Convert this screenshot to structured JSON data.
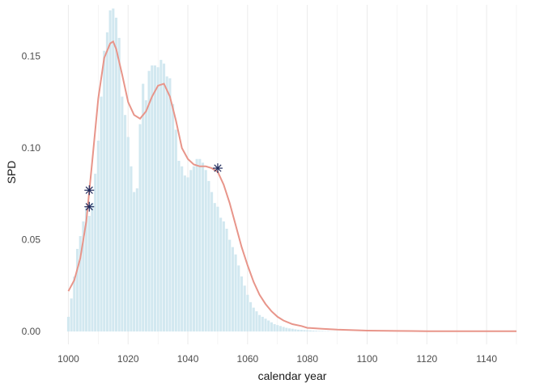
{
  "chart_data": {
    "type": "bar",
    "xlabel": "calendar year",
    "ylabel": "SPD",
    "xlim": [
      995,
      1150
    ],
    "ylim": [
      -0.007,
      0.178
    ],
    "x_ticks": [
      1000,
      1020,
      1040,
      1060,
      1080,
      1100,
      1120,
      1140
    ],
    "y_ticks": [
      0.0,
      0.05,
      0.1,
      0.15
    ],
    "y_tick_labels": [
      "0.00",
      "0.05",
      "0.10",
      "0.15"
    ],
    "grid": true,
    "colors": {
      "histogram": "#d2e8f0",
      "density_line": "#e8958a",
      "markers": "#1f2a5c",
      "grid": "#ebebeb"
    },
    "histogram": {
      "bin_width": 1,
      "x": [
        1000,
        1001,
        1002,
        1003,
        1004,
        1005,
        1006,
        1007,
        1008,
        1009,
        1010,
        1011,
        1012,
        1013,
        1014,
        1015,
        1016,
        1017,
        1018,
        1019,
        1020,
        1021,
        1022,
        1023,
        1024,
        1025,
        1026,
        1027,
        1028,
        1029,
        1030,
        1031,
        1032,
        1033,
        1034,
        1035,
        1036,
        1037,
        1038,
        1039,
        1040,
        1041,
        1042,
        1043,
        1044,
        1045,
        1046,
        1047,
        1048,
        1049,
        1050,
        1051,
        1052,
        1053,
        1054,
        1055,
        1056,
        1057,
        1058,
        1059,
        1060,
        1061,
        1062,
        1063,
        1064,
        1065,
        1066,
        1067,
        1068,
        1069,
        1070,
        1071,
        1072,
        1073,
        1074,
        1075,
        1076,
        1077,
        1078,
        1079,
        1080,
        1081,
        1082,
        1083,
        1084,
        1085,
        1086,
        1087,
        1088,
        1089,
        1090
      ],
      "values": [
        0.008,
        0.018,
        0.03,
        0.045,
        0.052,
        0.06,
        0.068,
        0.063,
        0.07,
        0.086,
        0.104,
        0.128,
        0.153,
        0.163,
        0.175,
        0.176,
        0.171,
        0.16,
        0.128,
        0.118,
        0.106,
        0.09,
        0.076,
        0.078,
        0.113,
        0.135,
        0.126,
        0.142,
        0.145,
        0.145,
        0.144,
        0.148,
        0.146,
        0.139,
        0.138,
        0.124,
        0.11,
        0.093,
        0.09,
        0.085,
        0.084,
        0.088,
        0.09,
        0.094,
        0.094,
        0.092,
        0.088,
        0.082,
        0.076,
        0.07,
        0.068,
        0.062,
        0.06,
        0.056,
        0.05,
        0.046,
        0.042,
        0.036,
        0.03,
        0.025,
        0.02,
        0.016,
        0.013,
        0.011,
        0.009,
        0.008,
        0.007,
        0.006,
        0.005,
        0.004,
        0.0035,
        0.003,
        0.0025,
        0.002,
        0.0017,
        0.0015,
        0.0012,
        0.001,
        0.0009,
        0.0008,
        0.0007,
        0.0006,
        0.0005,
        0.0004,
        0.0003,
        0.0003,
        0.0002,
        0.0002,
        0.0001,
        0.0001,
        0.0001
      ]
    },
    "density_line": {
      "x": [
        1000,
        1002,
        1004,
        1006,
        1008,
        1010,
        1012,
        1014,
        1015,
        1016,
        1018,
        1020,
        1022,
        1024,
        1026,
        1028,
        1030,
        1032,
        1034,
        1036,
        1038,
        1040,
        1042,
        1044,
        1046,
        1048,
        1050,
        1052,
        1054,
        1056,
        1058,
        1060,
        1062,
        1064,
        1066,
        1068,
        1070,
        1072,
        1075,
        1078,
        1080,
        1085,
        1090,
        1100,
        1110,
        1120,
        1130,
        1140,
        1150
      ],
      "y": [
        0.022,
        0.028,
        0.04,
        0.06,
        0.093,
        0.127,
        0.149,
        0.157,
        0.158,
        0.154,
        0.14,
        0.125,
        0.118,
        0.116,
        0.12,
        0.128,
        0.134,
        0.135,
        0.128,
        0.115,
        0.1,
        0.094,
        0.091,
        0.09,
        0.09,
        0.089,
        0.087,
        0.08,
        0.07,
        0.058,
        0.046,
        0.036,
        0.027,
        0.02,
        0.015,
        0.011,
        0.008,
        0.006,
        0.004,
        0.003,
        0.002,
        0.0015,
        0.001,
        0.0005,
        0.0003,
        0.0002,
        0.0002,
        0.0002,
        0.0002
      ]
    },
    "markers": [
      {
        "x": 1007,
        "y": 0.068
      },
      {
        "x": 1007,
        "y": 0.077
      },
      {
        "x": 1050,
        "y": 0.089
      }
    ]
  }
}
